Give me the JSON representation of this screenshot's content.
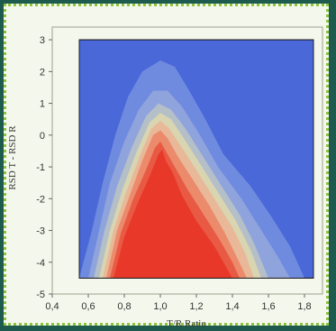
{
  "chart_data": {
    "type": "contour",
    "title": "",
    "xlabel": "T/R Ratio",
    "ylabel": "RSD T - RSD R",
    "xlim": [
      0.4,
      1.9
    ],
    "ylim": [
      -5,
      3.4
    ],
    "xticks": [
      "0,4",
      "0,6",
      "0,8",
      "1,0",
      "1,2",
      "1,4",
      "1,6",
      "1,8"
    ],
    "yticks": [
      "3",
      "2",
      "1",
      "0",
      "-1",
      "-2",
      "-3",
      "-4",
      "-5"
    ],
    "plot_region": {
      "x": [
        0.55,
        1.85
      ],
      "y": [
        -4.5,
        3.0
      ]
    },
    "background_color": "#4a68d8",
    "levels": [
      {
        "color": "#6f8be0",
        "outline": [
          [
            0.55,
            -4.5
          ],
          [
            0.62,
            -3
          ],
          [
            0.68,
            -1.5
          ],
          [
            0.75,
            0
          ],
          [
            0.82,
            1.2
          ],
          [
            0.9,
            2
          ],
          [
            1.0,
            2.35
          ],
          [
            1.08,
            2.15
          ],
          [
            1.15,
            1.5
          ],
          [
            1.25,
            0.5
          ],
          [
            1.35,
            -0.6
          ],
          [
            1.5,
            -1.6
          ],
          [
            1.62,
            -2.6
          ],
          [
            1.72,
            -3.5
          ],
          [
            1.8,
            -4.5
          ]
        ]
      },
      {
        "color": "#8fa3dc",
        "outline": [
          [
            0.6,
            -4.5
          ],
          [
            0.66,
            -3
          ],
          [
            0.72,
            -1.5
          ],
          [
            0.8,
            -0.2
          ],
          [
            0.88,
            0.8
          ],
          [
            0.96,
            1.4
          ],
          [
            1.04,
            1.4
          ],
          [
            1.12,
            0.9
          ],
          [
            1.22,
            0
          ],
          [
            1.32,
            -1
          ],
          [
            1.45,
            -2
          ],
          [
            1.55,
            -2.9
          ],
          [
            1.65,
            -3.8
          ],
          [
            1.72,
            -4.5
          ]
        ]
      },
      {
        "color": "#b4bfc8",
        "outline": [
          [
            0.63,
            -4.5
          ],
          [
            0.69,
            -3
          ],
          [
            0.76,
            -1.6
          ],
          [
            0.84,
            -0.4
          ],
          [
            0.92,
            0.6
          ],
          [
            0.99,
            1.0
          ],
          [
            1.06,
            0.8
          ],
          [
            1.14,
            0.2
          ],
          [
            1.24,
            -0.7
          ],
          [
            1.34,
            -1.6
          ],
          [
            1.44,
            -2.5
          ],
          [
            1.52,
            -3.4
          ],
          [
            1.6,
            -4.5
          ]
        ]
      },
      {
        "color": "#d9d5b0",
        "outline": [
          [
            0.66,
            -4.5
          ],
          [
            0.72,
            -3
          ],
          [
            0.79,
            -1.7
          ],
          [
            0.87,
            -0.5
          ],
          [
            0.94,
            0.4
          ],
          [
            1.0,
            0.7
          ],
          [
            1.06,
            0.5
          ],
          [
            1.13,
            -0.1
          ],
          [
            1.22,
            -0.9
          ],
          [
            1.32,
            -1.8
          ],
          [
            1.42,
            -2.7
          ],
          [
            1.5,
            -3.6
          ],
          [
            1.56,
            -4.5
          ]
        ]
      },
      {
        "color": "#e8b898",
        "outline": [
          [
            0.68,
            -4.5
          ],
          [
            0.74,
            -3
          ],
          [
            0.81,
            -1.8
          ],
          [
            0.89,
            -0.6
          ],
          [
            0.95,
            0.2
          ],
          [
            1.0,
            0.45
          ],
          [
            1.05,
            0.2
          ],
          [
            1.12,
            -0.4
          ],
          [
            1.2,
            -1.1
          ],
          [
            1.3,
            -2
          ],
          [
            1.4,
            -2.9
          ],
          [
            1.47,
            -3.7
          ],
          [
            1.52,
            -4.5
          ]
        ]
      },
      {
        "color": "#ec8a6c",
        "outline": [
          [
            0.7,
            -4.5
          ],
          [
            0.76,
            -3
          ],
          [
            0.83,
            -1.9
          ],
          [
            0.9,
            -0.8
          ],
          [
            0.96,
            0
          ],
          [
            1.0,
            0.15
          ],
          [
            1.04,
            -0.1
          ],
          [
            1.1,
            -0.7
          ],
          [
            1.18,
            -1.4
          ],
          [
            1.27,
            -2.2
          ],
          [
            1.36,
            -3.1
          ],
          [
            1.43,
            -3.9
          ],
          [
            1.48,
            -4.5
          ]
        ]
      },
      {
        "color": "#e85a44",
        "outline": [
          [
            0.72,
            -4.5
          ],
          [
            0.78,
            -3.1
          ],
          [
            0.85,
            -2
          ],
          [
            0.92,
            -1.1
          ],
          [
            0.97,
            -0.4
          ],
          [
            1.0,
            -0.2
          ],
          [
            1.03,
            -0.5
          ],
          [
            1.08,
            -1
          ],
          [
            1.15,
            -1.7
          ],
          [
            1.24,
            -2.5
          ],
          [
            1.33,
            -3.3
          ],
          [
            1.4,
            -4
          ],
          [
            1.44,
            -4.5
          ]
        ]
      },
      {
        "color": "#e8382a",
        "outline": [
          [
            0.74,
            -4.5
          ],
          [
            0.8,
            -3.2
          ],
          [
            0.87,
            -2.2
          ],
          [
            0.94,
            -1.3
          ],
          [
            0.99,
            -0.6
          ],
          [
            1.01,
            -0.45
          ],
          [
            1.03,
            -0.8
          ],
          [
            1.07,
            -1.2
          ],
          [
            1.12,
            -1.9
          ],
          [
            1.2,
            -2.7
          ],
          [
            1.3,
            -3.5
          ],
          [
            1.36,
            -4.1
          ],
          [
            1.4,
            -4.5
          ]
        ]
      }
    ]
  }
}
